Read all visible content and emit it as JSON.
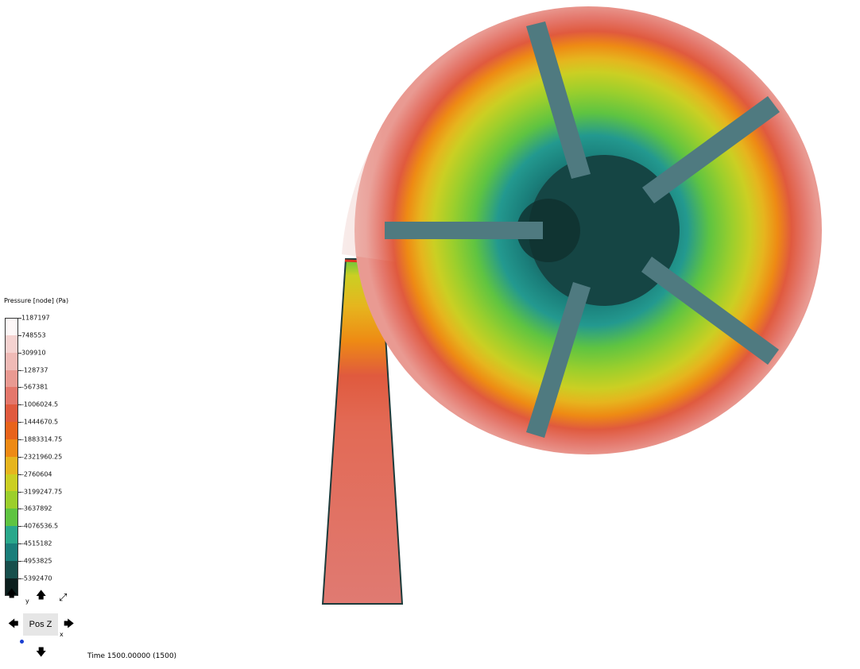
{
  "legend": {
    "title": "Pressure [node] (Pa)",
    "labels": [
      "1187197",
      "748553",
      "309910",
      "-128737",
      "-567381",
      "-1006024.5",
      "-1444670.5",
      "-1883314.75",
      "-2321960.25",
      "-2760604",
      "-3199247.75",
      "-3637892",
      "-4076536.5",
      "-4515182",
      "-4953825",
      "-5392470"
    ],
    "colors": [
      "#fdf7f7",
      "#f5d2d0",
      "#efbab6",
      "#e99a92",
      "#e4776b",
      "#e05a3e",
      "#e8631b",
      "#ee8a14",
      "#e6b51e",
      "#cbcf23",
      "#9ccf2c",
      "#5fc441",
      "#2aa88b",
      "#1a7e7a",
      "#174f4c",
      "#0c1e1d"
    ]
  },
  "nav": {
    "view_button": "Pos Z",
    "x_axis": "x",
    "y_axis": "y"
  },
  "status": {
    "time": "Time 1500.00000 (1500)"
  }
}
